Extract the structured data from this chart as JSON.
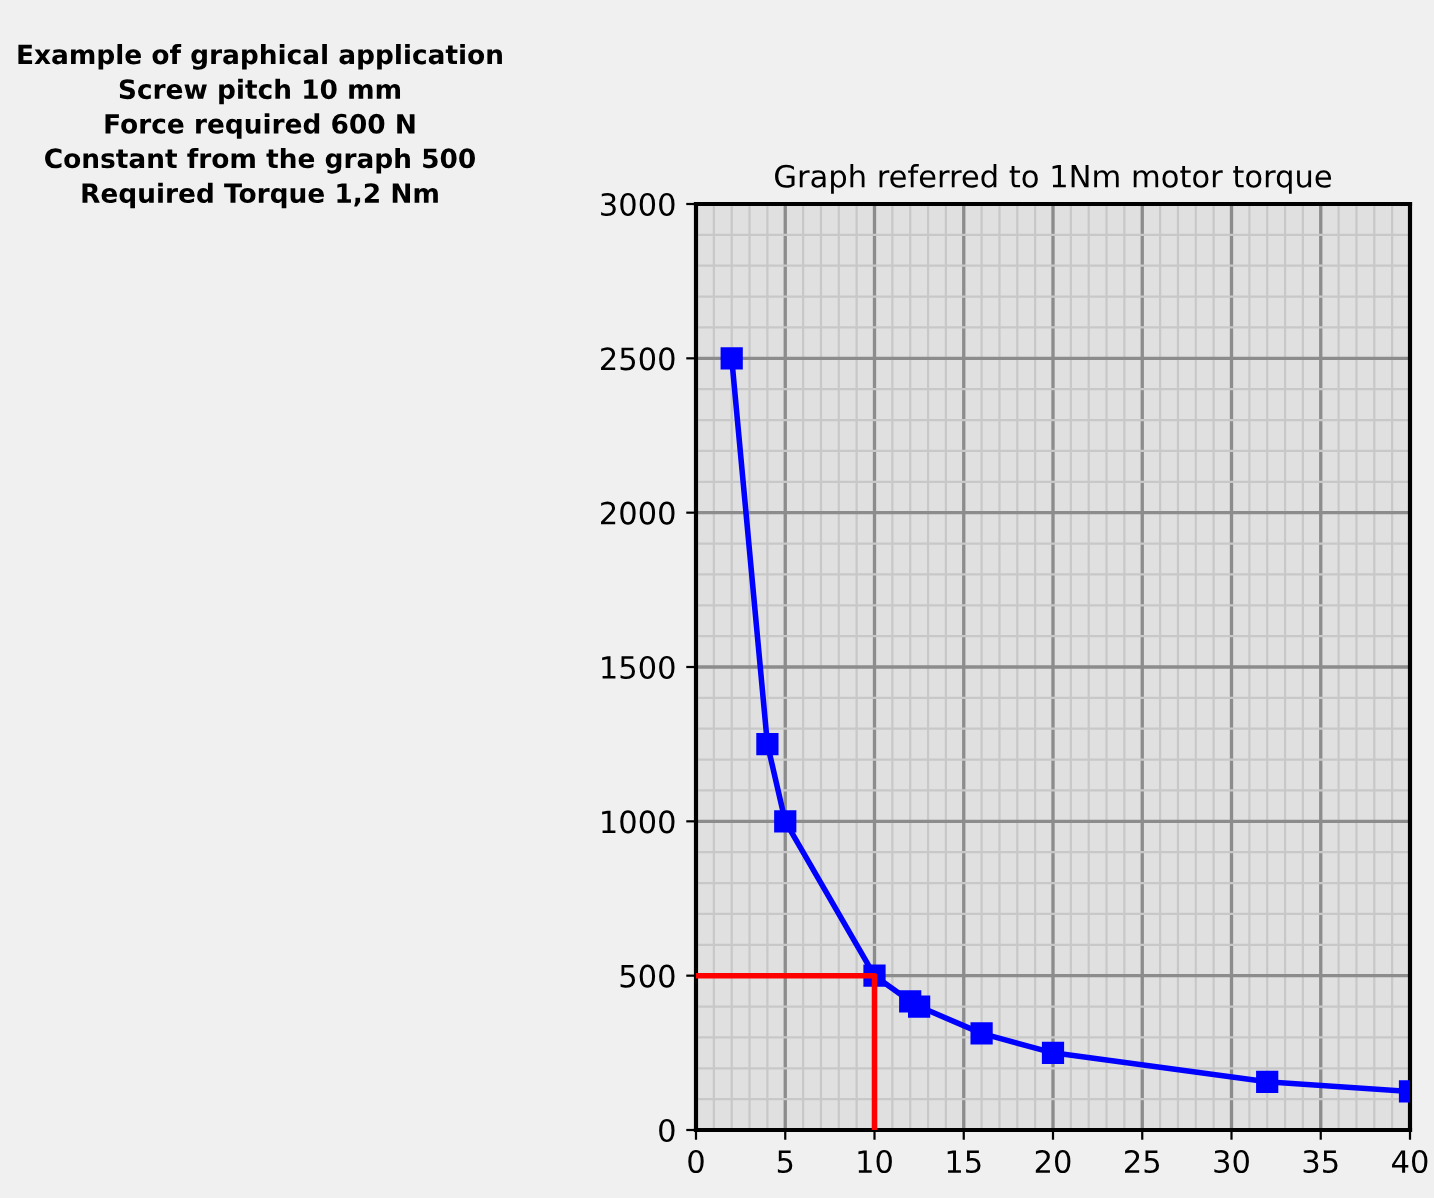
{
  "chart_data": {
    "type": "line",
    "title": "Graph referred to 1Nm motor torque",
    "annotations": [
      "Example of graphical application\nScrew pitch 10 mm\nForce required 600 N\nConstant from the graph 500\nRequired Torque 1,2 Nm"
    ],
    "series": [
      {
        "color": "#0000ff",
        "marker": "square",
        "x": [
          2,
          4,
          5,
          10,
          12,
          12.5,
          16,
          20,
          32,
          40
        ],
        "values": [
          2500,
          1250,
          1000,
          500,
          417,
          400,
          313,
          250,
          156,
          125
        ]
      },
      {
        "color": "#ff0000",
        "marker": "none",
        "x": [
          0,
          10,
          10
        ],
        "values": [
          500,
          500,
          0
        ]
      }
    ],
    "xlim": [
      0,
      40
    ],
    "xticks": [
      0,
      5,
      10,
      15,
      20,
      25,
      30,
      35,
      40
    ],
    "ylim": [
      0,
      3000
    ],
    "yticks": [
      0,
      500,
      1000,
      1500,
      2000,
      2500,
      3000
    ],
    "grid": true,
    "legend": false
  }
}
